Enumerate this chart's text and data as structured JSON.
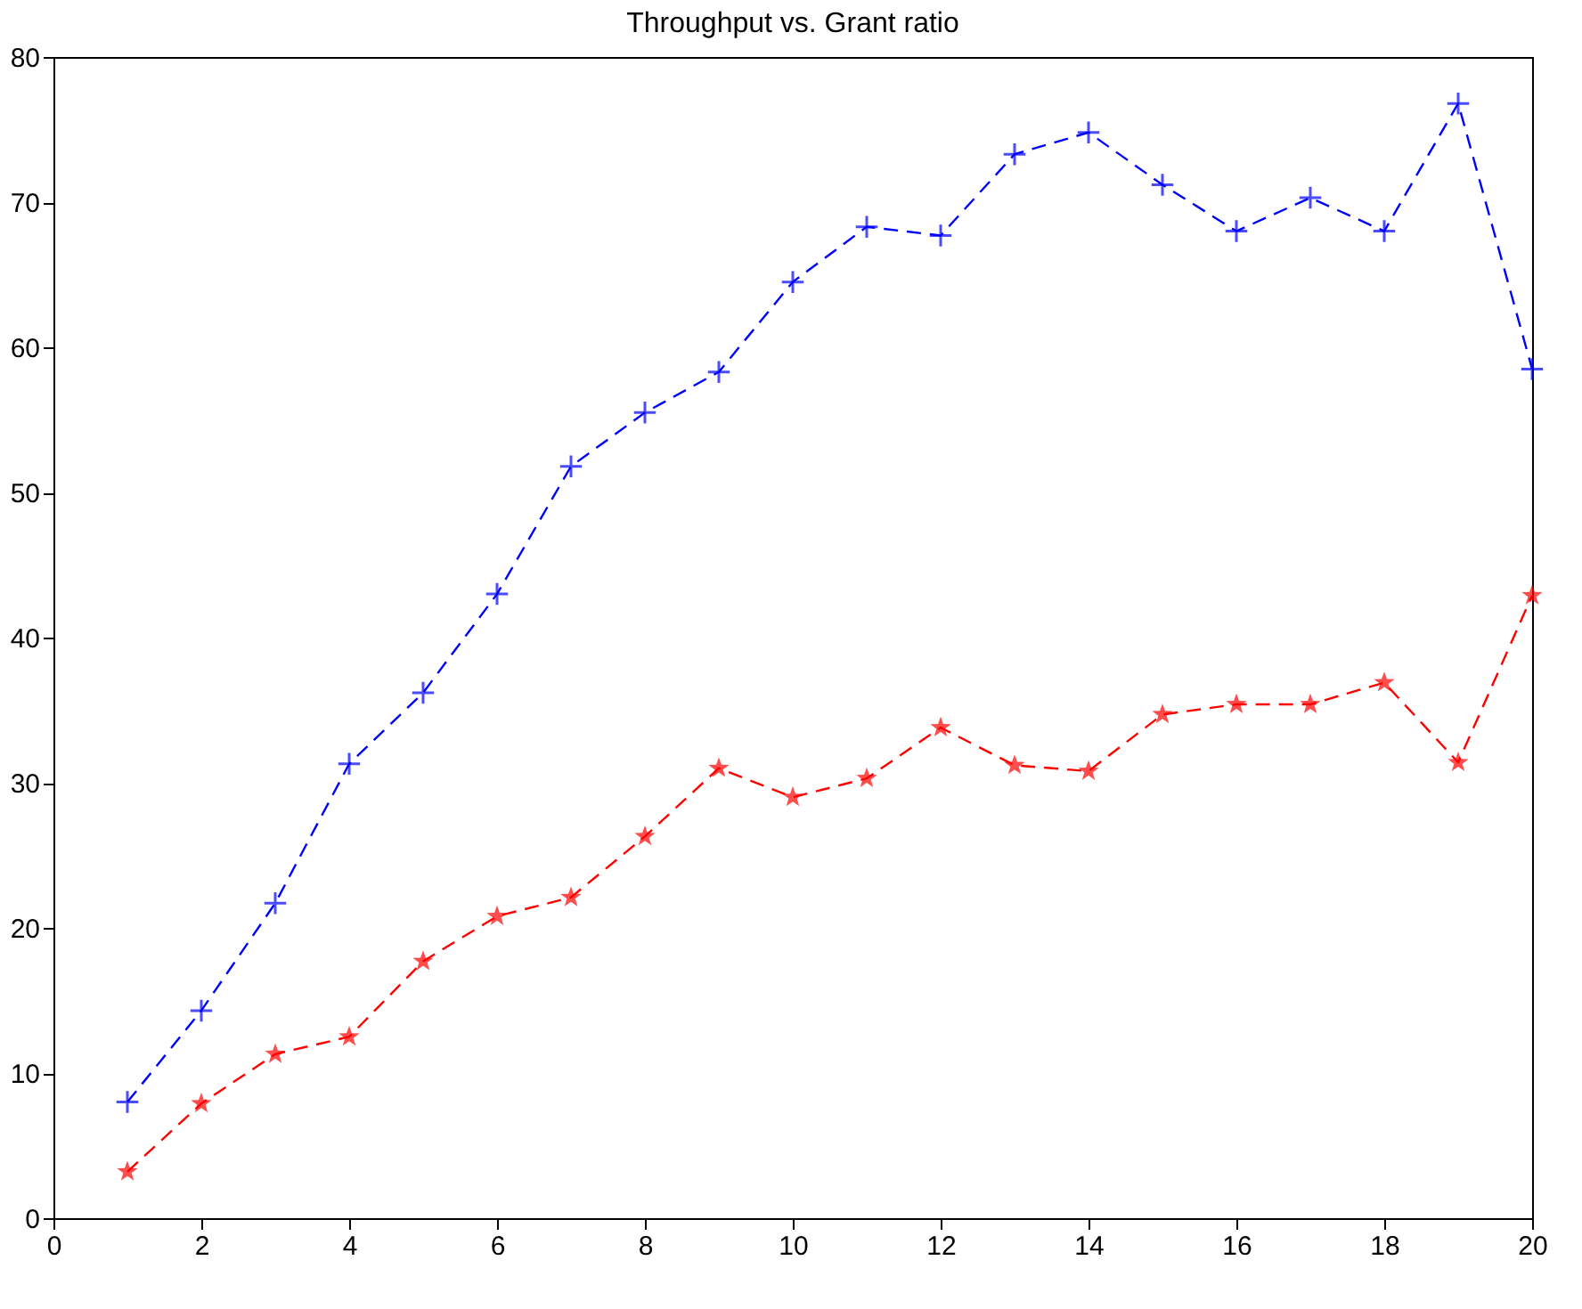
{
  "chart_data": {
    "type": "line",
    "title": "Throughput vs. Grant ratio",
    "x": [
      1,
      2,
      3,
      4,
      5,
      6,
      7,
      8,
      9,
      10,
      11,
      12,
      13,
      14,
      15,
      16,
      17,
      18,
      19,
      20
    ],
    "series": [
      {
        "color": "#0000ff",
        "marker": "cross",
        "line_style": "dashed",
        "values": [
          8,
          14.3,
          21.7,
          31.3,
          36.2,
          43,
          51.8,
          55.5,
          58.3,
          64.5,
          68.3,
          67.7,
          73.3,
          74.8,
          71.2,
          68,
          70.3,
          68,
          76.8,
          58.5
        ]
      },
      {
        "color": "#ff0000",
        "marker": "star",
        "line_style": "dashed",
        "values": [
          3.2,
          7.9,
          11.3,
          12.5,
          17.7,
          20.8,
          22.1,
          26.3,
          31,
          29,
          30.3,
          33.8,
          31.2,
          30.8,
          34.7,
          35.4,
          35.4,
          36.9,
          31.4,
          42.9
        ]
      }
    ],
    "xlim": [
      0,
      20
    ],
    "xticks": [
      0,
      2,
      4,
      6,
      8,
      10,
      12,
      14,
      16,
      18,
      20
    ],
    "ylim": [
      0,
      80
    ],
    "yticks": [
      0,
      10,
      20,
      30,
      40,
      50,
      60,
      70,
      80
    ],
    "grid": false
  }
}
